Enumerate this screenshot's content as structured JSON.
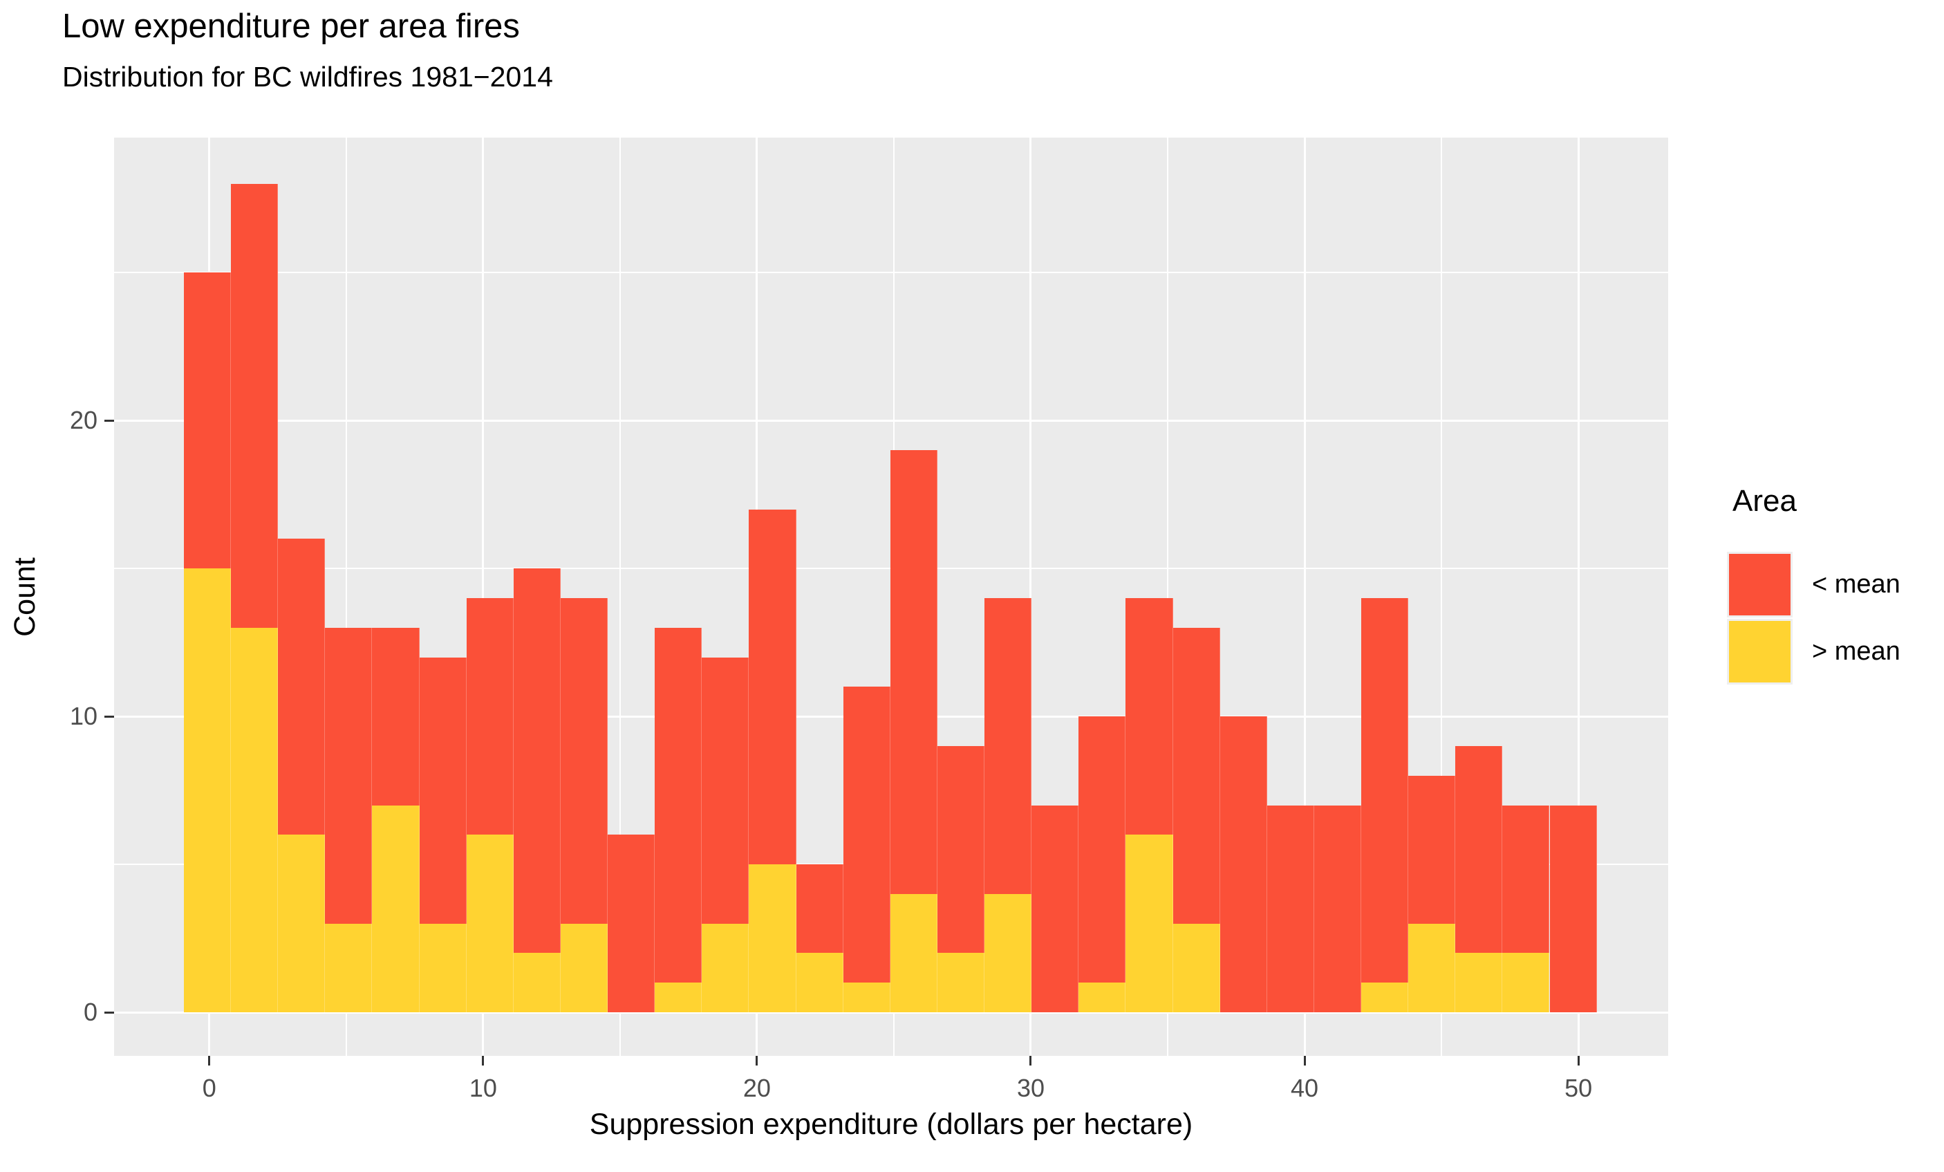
{
  "header": {
    "title": "Low expenditure per area fires",
    "subtitle": "Distribution for BC wildfires 1981−2014"
  },
  "axes": {
    "x": {
      "title": "Suppression expenditure (dollars per hectare)",
      "tick_labels": [
        "0",
        "10",
        "20",
        "30",
        "40",
        "50"
      ],
      "tick_values": [
        0,
        10,
        20,
        30,
        40,
        50
      ],
      "minor_tick_values": [
        5,
        15,
        25,
        35,
        45
      ],
      "range": [
        -3.48,
        53.28
      ]
    },
    "y": {
      "title": "Count",
      "tick_labels": [
        "0",
        "10",
        "20"
      ],
      "tick_values": [
        0,
        10,
        20
      ],
      "minor_tick_values": [
        5,
        15,
        25
      ],
      "range": [
        -1.47,
        29.56
      ]
    }
  },
  "legend": {
    "title": "Area",
    "items": [
      {
        "label": "< mean",
        "color": "#FB5038"
      },
      {
        "label": "> mean",
        "color": "#FFD331"
      }
    ]
  },
  "colors": {
    "lt_mean": "#FB5038",
    "gt_mean": "#FFD331",
    "panel_background": "#EBEBEB",
    "gridline": "#FFFFFF",
    "tick_mark": "#333333",
    "tick_text": "#4D4D4D",
    "title_text": "#000000"
  },
  "chart_data": {
    "type": "bar",
    "subtype": "stacked-histogram",
    "title": "Low expenditure per area fires",
    "subtitle": "Distribution for BC wildfires 1981−2014",
    "xlabel": "Suppression expenditure (dollars per hectare)",
    "ylabel": "Count",
    "xlim": [
      -3.48,
      53.28
    ],
    "ylim": [
      -1.47,
      29.56
    ],
    "grid": "on",
    "legend_position": "right",
    "bin_width": 1.72,
    "bin_starts": [
      -0.93,
      0.79,
      2.51,
      4.23,
      5.95,
      7.67,
      9.39,
      11.11,
      12.83,
      14.55,
      16.27,
      17.99,
      19.71,
      21.43,
      23.15,
      24.87,
      26.59,
      28.31,
      30.03,
      31.75,
      33.47,
      35.19,
      36.91,
      38.63,
      40.35,
      42.07,
      43.79,
      45.51,
      47.23,
      48.95
    ],
    "totals": [
      25,
      28,
      16,
      13,
      13,
      12,
      14,
      15,
      14,
      6,
      13,
      12,
      17,
      5,
      11,
      19,
      9,
      14,
      7,
      10,
      14,
      13,
      10,
      7,
      7,
      14,
      8,
      9,
      7,
      7
    ],
    "series": [
      {
        "name": "> mean",
        "stack_order": "bottom",
        "color": "#FFD331",
        "values": [
          15,
          13,
          6,
          3,
          7,
          3,
          6,
          2,
          3,
          0,
          1,
          3,
          5,
          2,
          1,
          4,
          2,
          4,
          0,
          1,
          6,
          3,
          0,
          0,
          0,
          1,
          3,
          2,
          2,
          0
        ]
      },
      {
        "name": "< mean",
        "stack_order": "top",
        "color": "#FB5038",
        "values": [
          10,
          15,
          10,
          10,
          6,
          9,
          8,
          13,
          11,
          6,
          12,
          9,
          12,
          3,
          10,
          15,
          7,
          10,
          7,
          9,
          8,
          10,
          10,
          7,
          7,
          13,
          5,
          7,
          5,
          7
        ]
      }
    ]
  }
}
